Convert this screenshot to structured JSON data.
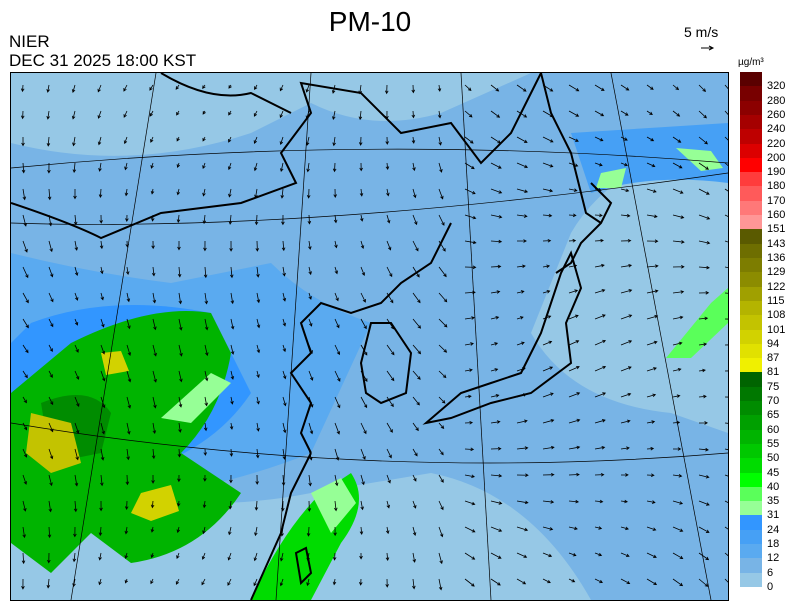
{
  "header": {
    "title": "PM-10",
    "agency": "NIER",
    "datetime": "DEC 31 2025 18:00 KST",
    "wind_reference": "5 m/s"
  },
  "legend": {
    "unit": "µg/m³",
    "labels": [
      "320",
      "280",
      "260",
      "240",
      "220",
      "200",
      "190",
      "180",
      "170",
      "160",
      "151",
      "143",
      "136",
      "129",
      "122",
      "115",
      "108",
      "101",
      "94",
      "87",
      "81",
      "75",
      "70",
      "65",
      "60",
      "55",
      "50",
      "45",
      "40",
      "35",
      "31",
      "24",
      "18",
      "12",
      "6",
      "0"
    ],
    "colors": [
      "#5a0000",
      "#780000",
      "#8c0000",
      "#a50000",
      "#be0000",
      "#dc0000",
      "#ff0000",
      "#ff3c3c",
      "#ff5a5a",
      "#ff7878",
      "#ff9696",
      "#5a5a00",
      "#6e6e00",
      "#7d7d00",
      "#8c8c00",
      "#a0a000",
      "#b4b400",
      "#c3c300",
      "#d2d200",
      "#e1e100",
      "#f0f000",
      "#006400",
      "#007800",
      "#008c00",
      "#00a000",
      "#00b400",
      "#00c800",
      "#00dc00",
      "#00ff00",
      "#5aff5a",
      "#96ff96",
      "#3296ff",
      "#46a0f5",
      "#5aaaf0",
      "#78b4e6",
      "#96c8e6"
    ]
  },
  "map": {
    "background_color": "#96c8e6",
    "region": "East Asia (Korea, Japan, China)"
  }
}
